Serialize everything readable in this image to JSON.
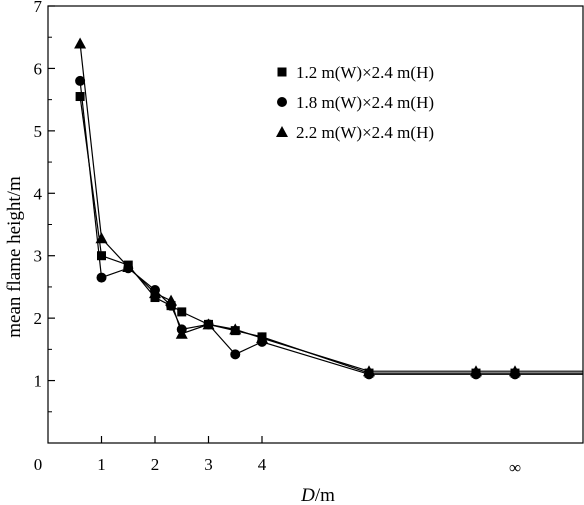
{
  "chart_data": {
    "type": "line",
    "title": "",
    "xlabel": {
      "italic": "D",
      "rest": "/m"
    },
    "ylabel": "mean flame height/m",
    "ylim": [
      0,
      7
    ],
    "yticks": [
      0,
      1,
      2,
      3,
      4,
      5,
      6,
      7
    ],
    "xticks": [
      {
        "value": 0,
        "label": "0"
      },
      {
        "value": 1,
        "label": "1"
      },
      {
        "value": 2,
        "label": "2"
      },
      {
        "value": 3,
        "label": "3"
      },
      {
        "value": 4,
        "label": "4"
      },
      {
        "value": "inf",
        "label": "∞"
      }
    ],
    "grid": false,
    "legend_position": "top-right",
    "series": [
      {
        "name": "1.2 m(W)×2.4 m(H)",
        "marker": "square",
        "x": [
          0.6,
          1.0,
          1.5,
          2.0,
          2.3,
          2.5,
          3.0,
          3.5,
          4.0,
          6.0,
          8.0,
          "inf"
        ],
        "y": [
          5.55,
          3.0,
          2.85,
          2.33,
          2.2,
          2.1,
          1.9,
          1.8,
          1.7,
          1.12,
          1.12,
          1.12
        ]
      },
      {
        "name": "1.8 m(W)×2.4 m(H)",
        "marker": "circle",
        "x": [
          0.6,
          1.0,
          1.5,
          2.0,
          2.3,
          2.5,
          3.0,
          3.5,
          4.0,
          6.0,
          8.0,
          "inf"
        ],
        "y": [
          5.8,
          2.65,
          2.8,
          2.45,
          2.2,
          1.82,
          1.9,
          1.42,
          1.62,
          1.1,
          1.1,
          1.1
        ]
      },
      {
        "name": "2.2 m(W)×2.4 m(H)",
        "marker": "triangle",
        "x": [
          0.6,
          1.0,
          1.5,
          2.0,
          2.3,
          2.5,
          3.0,
          3.5,
          4.0,
          6.0,
          8.0,
          "inf"
        ],
        "y": [
          6.4,
          3.28,
          2.82,
          2.4,
          2.28,
          1.75,
          1.9,
          1.82,
          1.68,
          1.15,
          1.15,
          1.15
        ]
      }
    ]
  }
}
